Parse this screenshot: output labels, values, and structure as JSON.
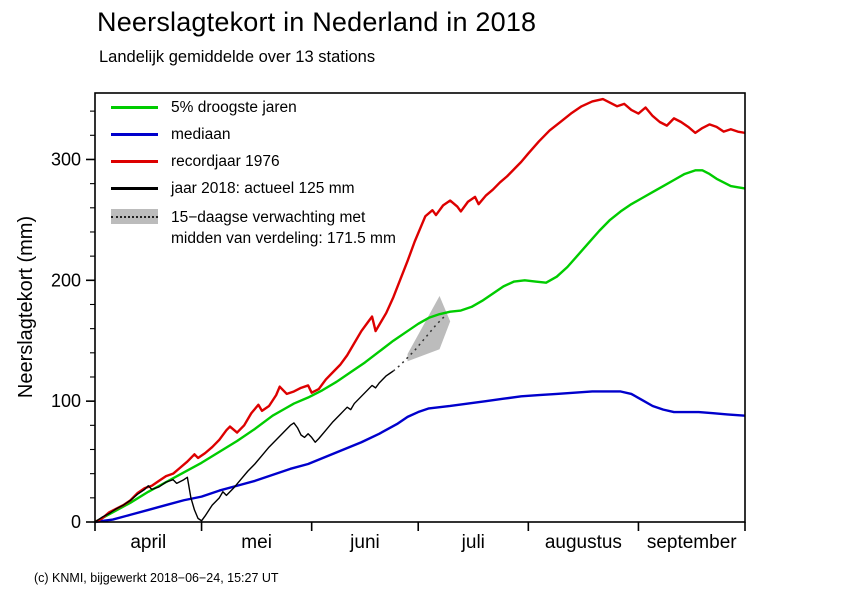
{
  "title": "Neerslagtekort in Nederland in 2018",
  "subtitle": "Landelijk gemiddelde over 13 stations",
  "footer": "(c) KNMI, bijgewerkt 2018−06−24, 15:27 UT",
  "chart_data": {
    "type": "line",
    "title": "Neerslagtekort in Nederland in 2018",
    "subtitle": "Landelijk gemiddelde over 13 stations",
    "ylabel": "Neerslagtekort (mm)",
    "xlabel": "",
    "x_unit": "days since 1 april",
    "xlim": [
      0,
      183
    ],
    "ylim": [
      0,
      355
    ],
    "yticks": [
      0,
      100,
      200,
      300
    ],
    "minor_tick_step": 20,
    "grid": false,
    "legend_position": "top-left-inside",
    "month_boundaries": [
      0,
      30,
      61,
      91,
      122,
      153,
      183
    ],
    "months": [
      {
        "label": "april",
        "center_day": 15
      },
      {
        "label": "mei",
        "center_day": 45.5
      },
      {
        "label": "juni",
        "center_day": 76
      },
      {
        "label": "juli",
        "center_day": 106.5
      },
      {
        "label": "augustus",
        "center_day": 137.5
      },
      {
        "label": "september",
        "center_day": 168
      }
    ],
    "legend": {
      "items": [
        {
          "label": "5% droogste jaren",
          "color": "#00cc00"
        },
        {
          "label": "mediaan",
          "color": "#0000cc"
        },
        {
          "label": "recordjaar 1976",
          "color": "#dd0000"
        },
        {
          "label": "jaar 2018: actueel 125 mm",
          "color": "#000000"
        }
      ],
      "forecast": {
        "line1": "15−daagse verwachting met",
        "line2": "midden van verdeling: 171.5 mm"
      }
    },
    "forecast_band": {
      "color": "#bcbcbc",
      "polygon": [
        [
          88,
          139
        ],
        [
          97,
          187
        ],
        [
          100,
          166
        ],
        [
          97,
          143
        ],
        [
          88,
          133
        ]
      ]
    },
    "series": [
      {
        "id": "droogste-5pct",
        "name": "5% droogste jaren",
        "color": "#00cc00",
        "width": 2.4,
        "points": [
          [
            0,
            0
          ],
          [
            5,
            8
          ],
          [
            10,
            16
          ],
          [
            15,
            25
          ],
          [
            20,
            33
          ],
          [
            25,
            41
          ],
          [
            30,
            49
          ],
          [
            35,
            58
          ],
          [
            40,
            67
          ],
          [
            45,
            77
          ],
          [
            50,
            88
          ],
          [
            53,
            93
          ],
          [
            56,
            98
          ],
          [
            60,
            103
          ],
          [
            64,
            109
          ],
          [
            68,
            116
          ],
          [
            72,
            124
          ],
          [
            76,
            132
          ],
          [
            80,
            141
          ],
          [
            84,
            150
          ],
          [
            88,
            158
          ],
          [
            91,
            164
          ],
          [
            94,
            169
          ],
          [
            97,
            172
          ],
          [
            100,
            174
          ],
          [
            103,
            175
          ],
          [
            106,
            178
          ],
          [
            109,
            183
          ],
          [
            112,
            189
          ],
          [
            115,
            195
          ],
          [
            118,
            199
          ],
          [
            121,
            200
          ],
          [
            124,
            199
          ],
          [
            127,
            198
          ],
          [
            130,
            203
          ],
          [
            133,
            211
          ],
          [
            136,
            221
          ],
          [
            139,
            231
          ],
          [
            142,
            241
          ],
          [
            145,
            250
          ],
          [
            148,
            257
          ],
          [
            151,
            263
          ],
          [
            154,
            268
          ],
          [
            157,
            273
          ],
          [
            160,
            278
          ],
          [
            163,
            283
          ],
          [
            166,
            288
          ],
          [
            169,
            291
          ],
          [
            171,
            291
          ],
          [
            173,
            288
          ],
          [
            175,
            284
          ],
          [
            177,
            281
          ],
          [
            179,
            278
          ],
          [
            181,
            277
          ],
          [
            183,
            276
          ]
        ]
      },
      {
        "id": "mediaan",
        "name": "mediaan",
        "color": "#0000cc",
        "width": 2.4,
        "points": [
          [
            0,
            0
          ],
          [
            5,
            2
          ],
          [
            10,
            6
          ],
          [
            15,
            10
          ],
          [
            20,
            14
          ],
          [
            25,
            18
          ],
          [
            30,
            21
          ],
          [
            35,
            26
          ],
          [
            40,
            30
          ],
          [
            45,
            34
          ],
          [
            50,
            39
          ],
          [
            55,
            44
          ],
          [
            60,
            48
          ],
          [
            65,
            54
          ],
          [
            70,
            60
          ],
          [
            75,
            66
          ],
          [
            80,
            73
          ],
          [
            85,
            81
          ],
          [
            88,
            87
          ],
          [
            91,
            91
          ],
          [
            94,
            94
          ],
          [
            97,
            95
          ],
          [
            100,
            96
          ],
          [
            105,
            98
          ],
          [
            110,
            100
          ],
          [
            115,
            102
          ],
          [
            120,
            104
          ],
          [
            125,
            105
          ],
          [
            130,
            106
          ],
          [
            135,
            107
          ],
          [
            140,
            108
          ],
          [
            145,
            108
          ],
          [
            148,
            108
          ],
          [
            151,
            106
          ],
          [
            154,
            101
          ],
          [
            157,
            96
          ],
          [
            160,
            93
          ],
          [
            163,
            91
          ],
          [
            166,
            91
          ],
          [
            170,
            91
          ],
          [
            174,
            90
          ],
          [
            178,
            89
          ],
          [
            183,
            88
          ]
        ]
      },
      {
        "id": "recordjaar-1976",
        "name": "recordjaar 1976",
        "color": "#dd0000",
        "width": 2.4,
        "points": [
          [
            0,
            0
          ],
          [
            2,
            3
          ],
          [
            4,
            8
          ],
          [
            6,
            11
          ],
          [
            8,
            14
          ],
          [
            10,
            18
          ],
          [
            12,
            24
          ],
          [
            14,
            28
          ],
          [
            16,
            30
          ],
          [
            18,
            34
          ],
          [
            20,
            38
          ],
          [
            22,
            40
          ],
          [
            24,
            45
          ],
          [
            26,
            50
          ],
          [
            28,
            56
          ],
          [
            29,
            53
          ],
          [
            31,
            57
          ],
          [
            33,
            62
          ],
          [
            35,
            68
          ],
          [
            37,
            76
          ],
          [
            38,
            79
          ],
          [
            40,
            74
          ],
          [
            42,
            80
          ],
          [
            44,
            90
          ],
          [
            46,
            97
          ],
          [
            47,
            92
          ],
          [
            49,
            96
          ],
          [
            51,
            105
          ],
          [
            52,
            112
          ],
          [
            54,
            106
          ],
          [
            56,
            108
          ],
          [
            58,
            111
          ],
          [
            60,
            113
          ],
          [
            61,
            107
          ],
          [
            63,
            110
          ],
          [
            65,
            118
          ],
          [
            67,
            124
          ],
          [
            69,
            130
          ],
          [
            71,
            138
          ],
          [
            73,
            148
          ],
          [
            75,
            158
          ],
          [
            77,
            166
          ],
          [
            78,
            170
          ],
          [
            79,
            158
          ],
          [
            80,
            163
          ],
          [
            82,
            173
          ],
          [
            84,
            186
          ],
          [
            86,
            201
          ],
          [
            88,
            216
          ],
          [
            90,
            232
          ],
          [
            92,
            246
          ],
          [
            93,
            253
          ],
          [
            95,
            258
          ],
          [
            96,
            254
          ],
          [
            98,
            262
          ],
          [
            100,
            266
          ],
          [
            102,
            261
          ],
          [
            103,
            257
          ],
          [
            105,
            265
          ],
          [
            107,
            269
          ],
          [
            108,
            263
          ],
          [
            110,
            270
          ],
          [
            112,
            275
          ],
          [
            114,
            281
          ],
          [
            116,
            286
          ],
          [
            118,
            292
          ],
          [
            120,
            298
          ],
          [
            122,
            305
          ],
          [
            125,
            315
          ],
          [
            128,
            324
          ],
          [
            131,
            331
          ],
          [
            134,
            338
          ],
          [
            137,
            344
          ],
          [
            140,
            348
          ],
          [
            143,
            350
          ],
          [
            145,
            347
          ],
          [
            147,
            344
          ],
          [
            149,
            346
          ],
          [
            151,
            341
          ],
          [
            153,
            338
          ],
          [
            155,
            343
          ],
          [
            157,
            336
          ],
          [
            159,
            331
          ],
          [
            161,
            328
          ],
          [
            163,
            334
          ],
          [
            165,
            331
          ],
          [
            167,
            327
          ],
          [
            169,
            322
          ],
          [
            171,
            326
          ],
          [
            173,
            329
          ],
          [
            175,
            327
          ],
          [
            177,
            323
          ],
          [
            179,
            325
          ],
          [
            181,
            323
          ],
          [
            183,
            322
          ]
        ]
      },
      {
        "id": "jaar-2018",
        "name": "jaar 2018: actueel 125 mm",
        "color": "#000000",
        "width": 1.4,
        "points": [
          [
            0,
            0
          ],
          [
            2,
            4
          ],
          [
            4,
            7
          ],
          [
            6,
            11
          ],
          [
            8,
            14
          ],
          [
            10,
            18
          ],
          [
            12,
            23
          ],
          [
            14,
            27
          ],
          [
            15,
            30
          ],
          [
            16,
            27
          ],
          [
            18,
            29
          ],
          [
            20,
            33
          ],
          [
            22,
            35
          ],
          [
            23,
            32
          ],
          [
            25,
            35
          ],
          [
            26,
            37
          ],
          [
            27,
            20
          ],
          [
            28,
            10
          ],
          [
            29,
            3
          ],
          [
            30,
            1
          ],
          [
            31,
            5
          ],
          [
            33,
            14
          ],
          [
            35,
            20
          ],
          [
            36,
            25
          ],
          [
            37,
            22
          ],
          [
            39,
            28
          ],
          [
            41,
            35
          ],
          [
            43,
            42
          ],
          [
            45,
            48
          ],
          [
            47,
            55
          ],
          [
            49,
            62
          ],
          [
            51,
            68
          ],
          [
            53,
            74
          ],
          [
            55,
            80
          ],
          [
            56,
            82
          ],
          [
            57,
            78
          ],
          [
            58,
            72
          ],
          [
            59,
            70
          ],
          [
            60,
            73
          ],
          [
            61,
            70
          ],
          [
            62,
            66
          ],
          [
            63,
            69
          ],
          [
            65,
            76
          ],
          [
            67,
            83
          ],
          [
            69,
            89
          ],
          [
            70,
            92
          ],
          [
            71,
            95
          ],
          [
            72,
            93
          ],
          [
            73,
            98
          ],
          [
            75,
            104
          ],
          [
            77,
            110
          ],
          [
            78,
            113
          ],
          [
            79,
            111
          ],
          [
            80,
            115
          ],
          [
            81,
            118
          ],
          [
            82,
            121
          ],
          [
            83,
            123
          ],
          [
            84,
            125
          ]
        ]
      },
      {
        "id": "verwachting-15d",
        "name": "15-daagse verwachting (midden van verdeling 171.5 mm)",
        "color": "#333333",
        "width": 1.5,
        "dash": "2 4",
        "points": [
          [
            84,
            125
          ],
          [
            86,
            130
          ],
          [
            88,
            136
          ],
          [
            90,
            142
          ],
          [
            92,
            149
          ],
          [
            94,
            156
          ],
          [
            96,
            163
          ],
          [
            98,
            169
          ],
          [
            99,
            171.5
          ]
        ]
      }
    ]
  }
}
